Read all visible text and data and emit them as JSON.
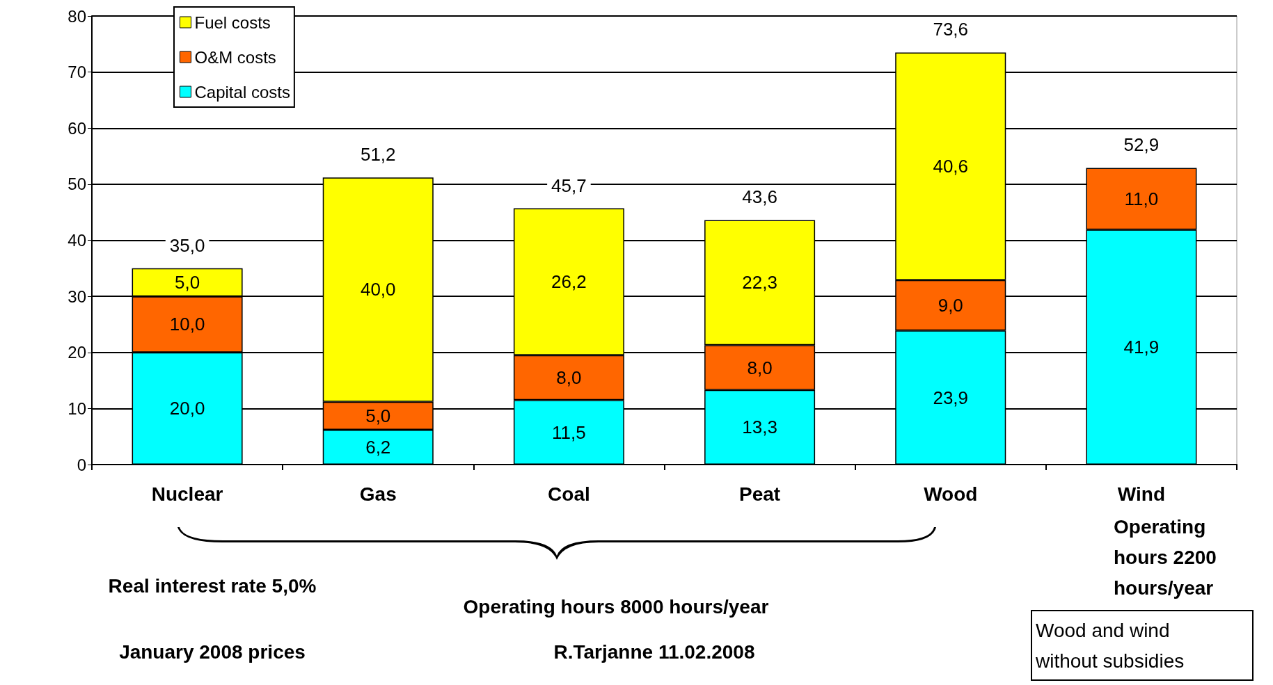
{
  "chart_data": {
    "type": "bar",
    "stacked": true,
    "categories": [
      "Nuclear",
      "Gas",
      "Coal",
      "Peat",
      "Wood",
      "Wind"
    ],
    "series": [
      {
        "name": "Capital costs",
        "color": "#00ffff",
        "values": [
          20.0,
          6.2,
          11.5,
          13.3,
          23.9,
          41.9
        ],
        "value_labels": [
          "20,0",
          "6,2",
          "11,5",
          "13,3",
          "23,9",
          "41,9"
        ]
      },
      {
        "name": "O&M costs",
        "color": "#ff6600",
        "values": [
          10.0,
          5.0,
          8.0,
          8.0,
          9.0,
          11.0
        ],
        "value_labels": [
          "10,0",
          "5,0",
          "8,0",
          "8,0",
          "9,0",
          "11,0"
        ]
      },
      {
        "name": "Fuel costs",
        "color": "#ffff00",
        "values": [
          5.0,
          40.0,
          26.2,
          22.3,
          40.6,
          null
        ],
        "value_labels": [
          "5,0",
          "40,0",
          "26,2",
          "22,3",
          "40,6",
          null
        ]
      }
    ],
    "totals": [
      "35,0",
      "51,2",
      "45,7",
      "43,6",
      "73,6",
      "52,9"
    ],
    "ylim": [
      0,
      80
    ],
    "yticks": [
      0,
      10,
      20,
      30,
      40,
      50,
      60,
      70,
      80
    ],
    "grid": "y",
    "legend": "top left",
    "annotations": [
      "Operating hours 2200 hours/year",
      "Real interest rate 5,0%",
      "Operating hours 8000 hours/year",
      "January 2008 prices",
      "R.Tarjanne 11.02.2008",
      "Wood and wind without subsidies"
    ]
  }
}
